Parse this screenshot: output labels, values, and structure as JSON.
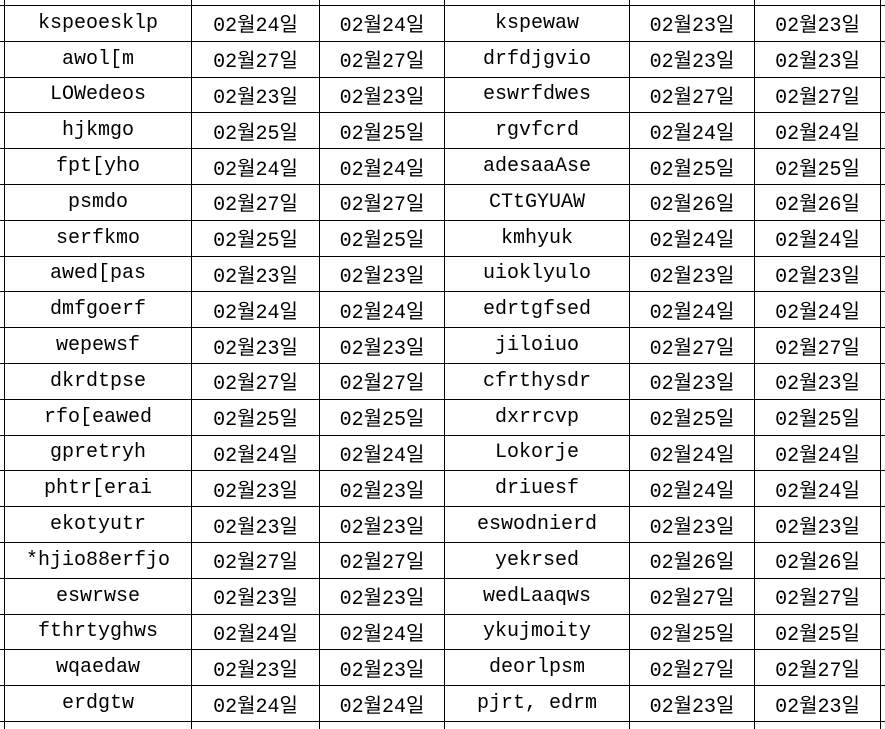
{
  "table": {
    "columns": [
      "name",
      "date",
      "date",
      "name",
      "date",
      "date"
    ],
    "rows": [
      {
        "left_name": "kspeoesklp",
        "left_date1": "02월24일",
        "left_date2": "02월24일",
        "right_name": "kspewaw",
        "right_date1": "02월23일",
        "right_date2": "02월23일"
      },
      {
        "left_name": "awol[m",
        "left_date1": "02월27일",
        "left_date2": "02월27일",
        "right_name": "drfdjgvio",
        "right_date1": "02월23일",
        "right_date2": "02월23일"
      },
      {
        "left_name": "LOWedeos",
        "left_date1": "02월23일",
        "left_date2": "02월23일",
        "right_name": "eswrfdwes",
        "right_date1": "02월27일",
        "right_date2": "02월27일"
      },
      {
        "left_name": "hjkmgo",
        "left_date1": "02월25일",
        "left_date2": "02월25일",
        "right_name": "rgvfcrd",
        "right_date1": "02월24일",
        "right_date2": "02월24일"
      },
      {
        "left_name": "fpt[yho",
        "left_date1": "02월24일",
        "left_date2": "02월24일",
        "right_name": "adesaaAse",
        "right_date1": "02월25일",
        "right_date2": "02월25일"
      },
      {
        "left_name": "psmdo",
        "left_date1": "02월27일",
        "left_date2": "02월27일",
        "right_name": "CTtGYUAW",
        "right_date1": "02월26일",
        "right_date2": "02월26일"
      },
      {
        "left_name": "serfkmo",
        "left_date1": "02월25일",
        "left_date2": "02월25일",
        "right_name": "kmhyuk",
        "right_date1": "02월24일",
        "right_date2": "02월24일"
      },
      {
        "left_name": "awed[pas",
        "left_date1": "02월23일",
        "left_date2": "02월23일",
        "right_name": "uioklyulo",
        "right_date1": "02월23일",
        "right_date2": "02월23일"
      },
      {
        "left_name": "dmfgoerf",
        "left_date1": "02월24일",
        "left_date2": "02월24일",
        "right_name": "edrtgfsed",
        "right_date1": "02월24일",
        "right_date2": "02월24일"
      },
      {
        "left_name": "wepewsf",
        "left_date1": "02월23일",
        "left_date2": "02월23일",
        "right_name": "jiloiuo",
        "right_date1": "02월27일",
        "right_date2": "02월27일"
      },
      {
        "left_name": "dkrdtpse",
        "left_date1": "02월27일",
        "left_date2": "02월27일",
        "right_name": "cfrthysdr",
        "right_date1": "02월23일",
        "right_date2": "02월23일"
      },
      {
        "left_name": "rfo[eawed",
        "left_date1": "02월25일",
        "left_date2": "02월25일",
        "right_name": "dxrrcvp",
        "right_date1": "02월25일",
        "right_date2": "02월25일"
      },
      {
        "left_name": "gpretryh",
        "left_date1": "02월24일",
        "left_date2": "02월24일",
        "right_name": "Lokorje",
        "right_date1": "02월24일",
        "right_date2": "02월24일"
      },
      {
        "left_name": "phtr[erai",
        "left_date1": "02월23일",
        "left_date2": "02월23일",
        "right_name": "driuesf",
        "right_date1": "02월24일",
        "right_date2": "02월24일"
      },
      {
        "left_name": "ekotyutr",
        "left_date1": "02월23일",
        "left_date2": "02월23일",
        "right_name": "eswodnierd",
        "right_date1": "02월23일",
        "right_date2": "02월23일"
      },
      {
        "left_name": "*hjio88erfjo",
        "left_date1": "02월27일",
        "left_date2": "02월27일",
        "right_name": "yekrsed",
        "right_date1": "02월26일",
        "right_date2": "02월26일"
      },
      {
        "left_name": "eswrwse",
        "left_date1": "02월23일",
        "left_date2": "02월23일",
        "right_name": "wedLaaqws",
        "right_date1": "02월27일",
        "right_date2": "02월27일"
      },
      {
        "left_name": "fthrtyghws",
        "left_date1": "02월24일",
        "left_date2": "02월24일",
        "right_name": "ykujmoity",
        "right_date1": "02월25일",
        "right_date2": "02월25일"
      },
      {
        "left_name": "wqaedaw",
        "left_date1": "02월23일",
        "left_date2": "02월23일",
        "right_name": "deorlpsm",
        "right_date1": "02월27일",
        "right_date2": "02월27일"
      },
      {
        "left_name": "erdgtw",
        "left_date1": "02월24일",
        "left_date2": "02월24일",
        "right_name": "pjrt, edrm",
        "right_date1": "02월23일",
        "right_date2": "02월23일"
      }
    ]
  },
  "colors": {
    "border": "#000000",
    "text": "#000000",
    "background": "#ffffff"
  }
}
